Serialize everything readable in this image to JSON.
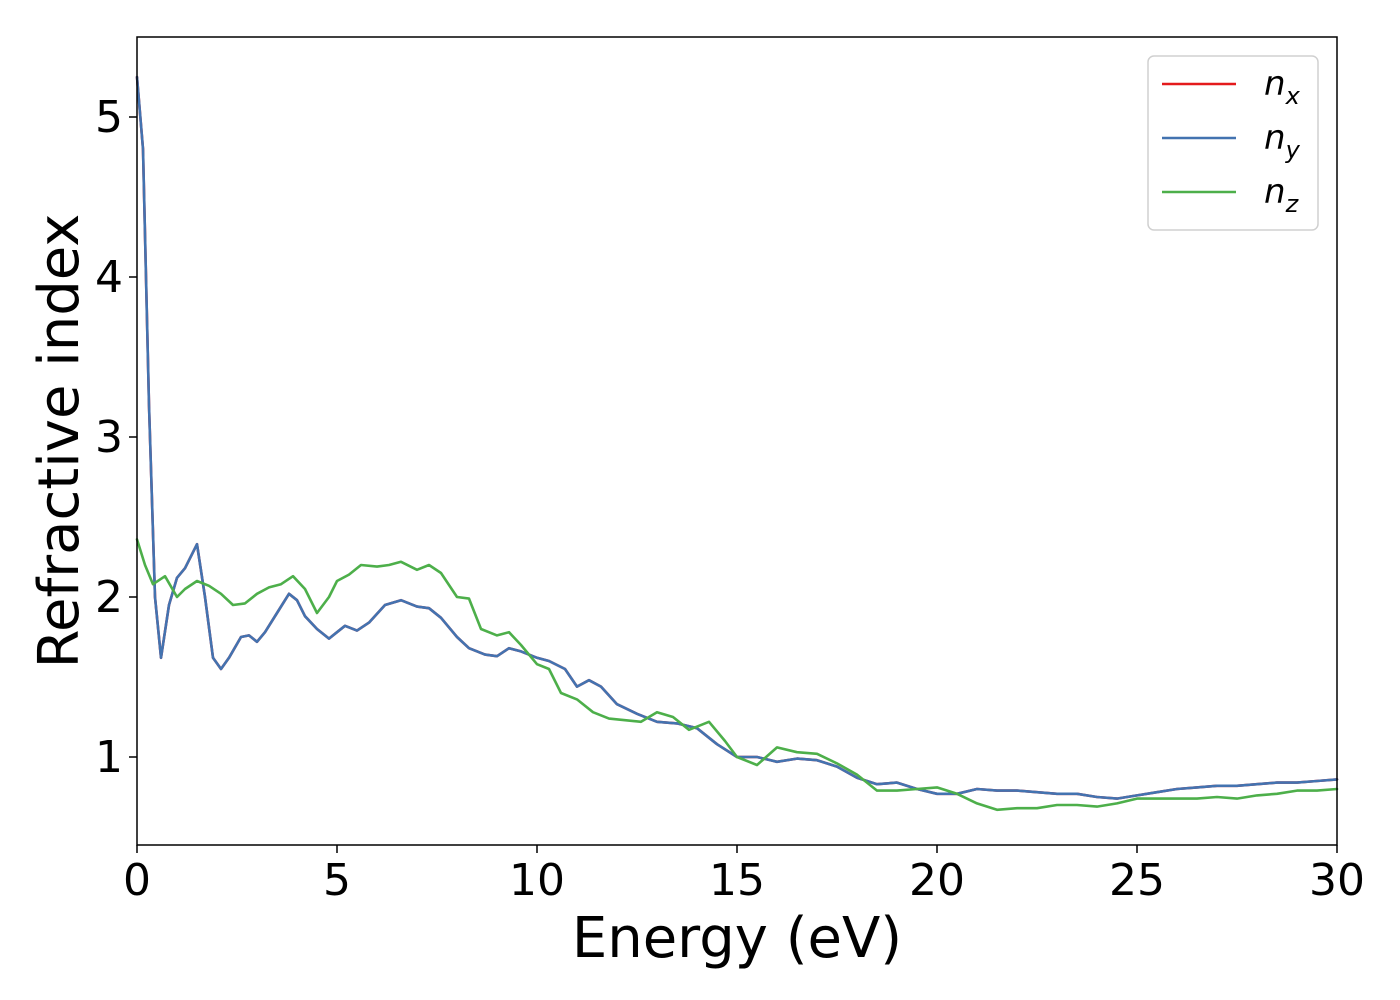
{
  "chart_data": {
    "type": "line",
    "xlabel": "Energy (eV)",
    "ylabel": "Refractive index",
    "xlim": [
      0,
      30
    ],
    "ylim": [
      0.45,
      5.5
    ],
    "xticks": [
      "0",
      "5",
      "10",
      "15",
      "20",
      "25",
      "30"
    ],
    "yticks": [
      "1",
      "2",
      "3",
      "4",
      "5"
    ],
    "legend_position": "top-right",
    "grid": false,
    "series": [
      {
        "name": "n",
        "subscript": "x",
        "color": "#e41a1c",
        "x": [
          0,
          0.15,
          0.3,
          0.45,
          0.6,
          0.8,
          1.0,
          1.2,
          1.5,
          1.7,
          1.9,
          2.1,
          2.3,
          2.6,
          2.8,
          3.0,
          3.2,
          3.5,
          3.8,
          4.0,
          4.2,
          4.5,
          4.8,
          5.0,
          5.2,
          5.5,
          5.8,
          6.2,
          6.6,
          7.0,
          7.3,
          7.6,
          8.0,
          8.3,
          8.7,
          9.0,
          9.3,
          9.6,
          10.0,
          10.3,
          10.7,
          11.0,
          11.3,
          11.6,
          12.0,
          12.5,
          13.0,
          13.5,
          14.0,
          14.5,
          15.0,
          15.5,
          16.0,
          16.5,
          17.0,
          17.5,
          18.0,
          18.5,
          19.0,
          19.5,
          20.0,
          20.5,
          21.0,
          21.5,
          22.0,
          22.5,
          23.0,
          23.5,
          24.0,
          24.5,
          25.0,
          25.5,
          26.0,
          26.5,
          27.0,
          27.5,
          28.0,
          28.5,
          29.0,
          29.5,
          30.0
        ],
        "values": [
          5.25,
          4.8,
          3.2,
          2.0,
          1.62,
          1.95,
          2.12,
          2.18,
          2.33,
          2.0,
          1.62,
          1.55,
          1.62,
          1.75,
          1.76,
          1.72,
          1.78,
          1.9,
          2.02,
          1.98,
          1.88,
          1.8,
          1.74,
          1.78,
          1.82,
          1.79,
          1.84,
          1.95,
          1.98,
          1.94,
          1.93,
          1.87,
          1.75,
          1.68,
          1.64,
          1.63,
          1.68,
          1.66,
          1.62,
          1.6,
          1.55,
          1.44,
          1.48,
          1.44,
          1.33,
          1.27,
          1.22,
          1.21,
          1.18,
          1.08,
          1.0,
          1.0,
          0.97,
          0.99,
          0.98,
          0.94,
          0.87,
          0.83,
          0.84,
          0.8,
          0.77,
          0.77,
          0.8,
          0.79,
          0.79,
          0.78,
          0.77,
          0.77,
          0.75,
          0.74,
          0.76,
          0.78,
          0.8,
          0.81,
          0.82,
          0.82,
          0.83,
          0.84,
          0.84,
          0.85,
          0.86
        ]
      },
      {
        "name": "n",
        "subscript": "y",
        "color": "#4373b0",
        "x": [
          0,
          0.15,
          0.3,
          0.45,
          0.6,
          0.8,
          1.0,
          1.2,
          1.5,
          1.7,
          1.9,
          2.1,
          2.3,
          2.6,
          2.8,
          3.0,
          3.2,
          3.5,
          3.8,
          4.0,
          4.2,
          4.5,
          4.8,
          5.0,
          5.2,
          5.5,
          5.8,
          6.2,
          6.6,
          7.0,
          7.3,
          7.6,
          8.0,
          8.3,
          8.7,
          9.0,
          9.3,
          9.6,
          10.0,
          10.3,
          10.7,
          11.0,
          11.3,
          11.6,
          12.0,
          12.5,
          13.0,
          13.5,
          14.0,
          14.5,
          15.0,
          15.5,
          16.0,
          16.5,
          17.0,
          17.5,
          18.0,
          18.5,
          19.0,
          19.5,
          20.0,
          20.5,
          21.0,
          21.5,
          22.0,
          22.5,
          23.0,
          23.5,
          24.0,
          24.5,
          25.0,
          25.5,
          26.0,
          26.5,
          27.0,
          27.5,
          28.0,
          28.5,
          29.0,
          29.5,
          30.0
        ],
        "values": [
          5.25,
          4.8,
          3.2,
          2.0,
          1.62,
          1.95,
          2.12,
          2.18,
          2.33,
          2.0,
          1.62,
          1.55,
          1.62,
          1.75,
          1.76,
          1.72,
          1.78,
          1.9,
          2.02,
          1.98,
          1.88,
          1.8,
          1.74,
          1.78,
          1.82,
          1.79,
          1.84,
          1.95,
          1.98,
          1.94,
          1.93,
          1.87,
          1.75,
          1.68,
          1.64,
          1.63,
          1.68,
          1.66,
          1.62,
          1.6,
          1.55,
          1.44,
          1.48,
          1.44,
          1.33,
          1.27,
          1.22,
          1.21,
          1.18,
          1.08,
          1.0,
          1.0,
          0.97,
          0.99,
          0.98,
          0.94,
          0.87,
          0.83,
          0.84,
          0.8,
          0.77,
          0.77,
          0.8,
          0.79,
          0.79,
          0.78,
          0.77,
          0.77,
          0.75,
          0.74,
          0.76,
          0.78,
          0.8,
          0.81,
          0.82,
          0.82,
          0.83,
          0.84,
          0.84,
          0.85,
          0.86
        ]
      },
      {
        "name": "n",
        "subscript": "z",
        "color": "#4daf4a",
        "x": [
          0,
          0.2,
          0.4,
          0.7,
          1.0,
          1.2,
          1.5,
          1.8,
          2.1,
          2.4,
          2.7,
          3.0,
          3.3,
          3.6,
          3.9,
          4.2,
          4.5,
          4.8,
          5.0,
          5.3,
          5.6,
          6.0,
          6.3,
          6.6,
          7.0,
          7.3,
          7.6,
          8.0,
          8.3,
          8.6,
          9.0,
          9.3,
          9.6,
          10.0,
          10.3,
          10.6,
          11.0,
          11.4,
          11.8,
          12.2,
          12.6,
          13.0,
          13.4,
          13.8,
          14.3,
          14.7,
          15.0,
          15.5,
          16.0,
          16.5,
          17.0,
          17.5,
          18.0,
          18.5,
          19.0,
          19.5,
          20.0,
          20.5,
          21.0,
          21.5,
          22.0,
          22.5,
          23.0,
          23.5,
          24.0,
          24.5,
          25.0,
          25.5,
          26.0,
          26.5,
          27.0,
          27.5,
          28.0,
          28.5,
          29.0,
          29.5,
          30.0
        ],
        "values": [
          2.36,
          2.2,
          2.08,
          2.13,
          2.0,
          2.05,
          2.1,
          2.07,
          2.02,
          1.95,
          1.96,
          2.02,
          2.06,
          2.08,
          2.13,
          2.05,
          1.9,
          2.0,
          2.1,
          2.14,
          2.2,
          2.19,
          2.2,
          2.22,
          2.17,
          2.2,
          2.15,
          2.0,
          1.99,
          1.8,
          1.76,
          1.78,
          1.7,
          1.58,
          1.55,
          1.4,
          1.36,
          1.28,
          1.24,
          1.23,
          1.22,
          1.28,
          1.25,
          1.17,
          1.22,
          1.1,
          1.0,
          0.95,
          1.06,
          1.03,
          1.02,
          0.96,
          0.89,
          0.79,
          0.79,
          0.8,
          0.81,
          0.77,
          0.71,
          0.67,
          0.68,
          0.68,
          0.7,
          0.7,
          0.69,
          0.71,
          0.74,
          0.74,
          0.74,
          0.74,
          0.75,
          0.74,
          0.76,
          0.77,
          0.79,
          0.79,
          0.8
        ]
      }
    ]
  }
}
